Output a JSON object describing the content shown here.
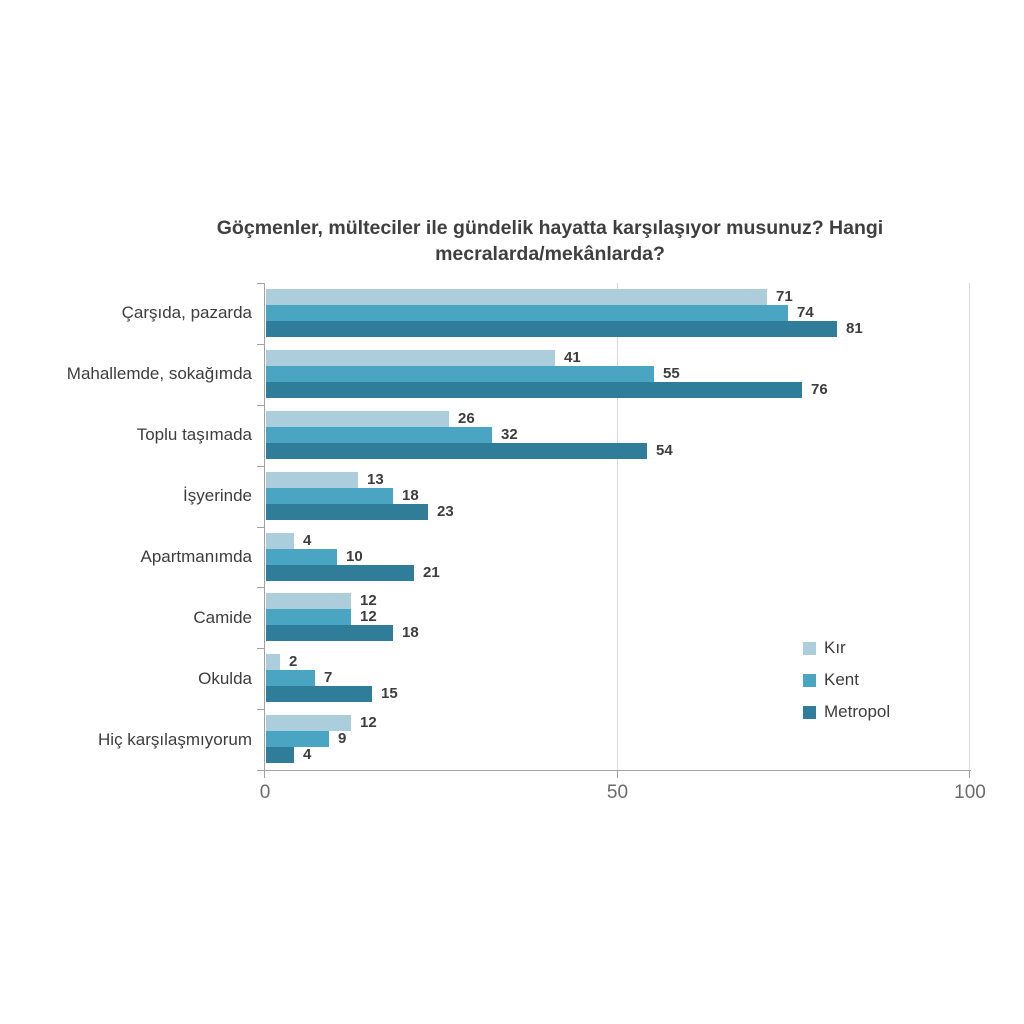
{
  "chart_data": {
    "type": "bar",
    "orientation": "horizontal",
    "title": "Göçmenler, mülteciler ile gündelik hayatta karşılaşıyor musunuz? Hangi mecralarda/mekânlarda?",
    "categories": [
      "Çarşıda, pazarda",
      "Mahallemde, sokağımda",
      "Toplu taşımada",
      "İşyerinde",
      "Apartmanımda",
      "Camide",
      "Okulda",
      "Hiç karşılaşmıyorum"
    ],
    "series": [
      {
        "name": "Kır",
        "color": "#accddc",
        "values": [
          71,
          41,
          26,
          13,
          4,
          12,
          2,
          12
        ]
      },
      {
        "name": "Kent",
        "color": "#49a5c1",
        "values": [
          74,
          55,
          32,
          18,
          10,
          12,
          7,
          9
        ]
      },
      {
        "name": "Metropol",
        "color": "#2f7d98",
        "values": [
          81,
          76,
          54,
          23,
          21,
          18,
          15,
          4
        ]
      }
    ],
    "xlabel": "",
    "ylabel": "",
    "xlim": [
      0,
      100
    ],
    "xticks": [
      0,
      50,
      100
    ],
    "grid": "vertical gridlines at 50 and 100",
    "legend_position": "right",
    "value_labels": true
  },
  "colors": {
    "title_text": "#3f3f3f",
    "label_text": "#3d3d3d",
    "axis_line": "#a3a3a3",
    "gridline": "#d8d8d8",
    "tick_label": "#6b6b6b",
    "background": "#ffffff"
  }
}
